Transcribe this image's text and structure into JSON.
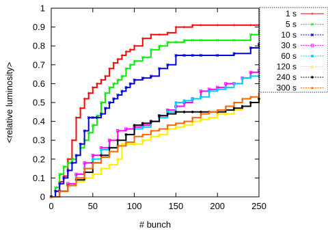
{
  "chart_data": {
    "type": "line",
    "xlabel": "# bunch",
    "ylabel": "<relative luminosity>",
    "xlim": [
      0,
      250
    ],
    "ylim": [
      0,
      1
    ],
    "xticks": [
      0,
      50,
      100,
      150,
      200,
      250
    ],
    "yticks": [
      0,
      0.1,
      0.2,
      0.3,
      0.4,
      0.5,
      0.6,
      0.7,
      0.8,
      0.9,
      1
    ],
    "xtick_labels": [
      "0",
      "50",
      "100",
      "150",
      "200",
      "250"
    ],
    "ytick_labels": [
      "0",
      "0.1",
      "0.2",
      "0.3",
      "0.4",
      "0.5",
      "0.6",
      "0.7",
      "0.8",
      "0.9",
      "1"
    ],
    "grid": false,
    "legend_position": "outside-right-top",
    "series": [
      {
        "name": "1 s",
        "color": "#ff0000",
        "marker": "plus",
        "x": [
          0,
          5,
          10,
          15,
          20,
          25,
          30,
          35,
          40,
          45,
          50,
          55,
          60,
          65,
          70,
          75,
          80,
          85,
          90,
          95,
          100,
          110,
          120,
          130,
          140,
          150,
          160,
          170,
          180,
          200,
          220,
          240,
          250
        ],
        "y": [
          0.0,
          0.03,
          0.08,
          0.11,
          0.2,
          0.3,
          0.42,
          0.47,
          0.52,
          0.55,
          0.58,
          0.6,
          0.62,
          0.64,
          0.68,
          0.71,
          0.73,
          0.75,
          0.77,
          0.78,
          0.8,
          0.84,
          0.86,
          0.86,
          0.87,
          0.9,
          0.9,
          0.91,
          0.91,
          0.91,
          0.91,
          0.91,
          0.91
        ]
      },
      {
        "name": "5 s",
        "color": "#00ee00",
        "marker": "cross",
        "x": [
          0,
          5,
          10,
          15,
          20,
          25,
          30,
          35,
          40,
          45,
          50,
          55,
          60,
          65,
          70,
          75,
          80,
          85,
          90,
          95,
          100,
          110,
          120,
          130,
          140,
          150,
          160,
          170,
          180,
          200,
          220,
          240,
          250
        ],
        "y": [
          0.0,
          0.05,
          0.12,
          0.16,
          0.18,
          0.2,
          0.22,
          0.26,
          0.3,
          0.34,
          0.38,
          0.43,
          0.5,
          0.55,
          0.58,
          0.6,
          0.62,
          0.64,
          0.68,
          0.7,
          0.72,
          0.74,
          0.78,
          0.8,
          0.82,
          0.82,
          0.83,
          0.83,
          0.83,
          0.83,
          0.83,
          0.86,
          0.88
        ]
      },
      {
        "name": "10 s",
        "color": "#0000dd",
        "marker": "asterisk",
        "x": [
          0,
          5,
          10,
          15,
          20,
          25,
          30,
          35,
          40,
          45,
          50,
          55,
          60,
          65,
          70,
          75,
          80,
          85,
          90,
          95,
          100,
          110,
          120,
          130,
          140,
          150,
          160,
          170,
          180,
          200,
          220,
          240,
          250
        ],
        "y": [
          0.0,
          0.03,
          0.07,
          0.1,
          0.14,
          0.18,
          0.22,
          0.28,
          0.35,
          0.42,
          0.42,
          0.42,
          0.44,
          0.47,
          0.5,
          0.52,
          0.54,
          0.56,
          0.58,
          0.6,
          0.62,
          0.63,
          0.64,
          0.68,
          0.7,
          0.75,
          0.75,
          0.75,
          0.75,
          0.75,
          0.76,
          0.79,
          0.81
        ]
      },
      {
        "name": "30 s",
        "color": "#ff00ff",
        "marker": "square-open",
        "x": [
          0,
          10,
          20,
          30,
          40,
          50,
          60,
          70,
          80,
          90,
          100,
          110,
          120,
          130,
          140,
          150,
          160,
          170,
          180,
          190,
          200,
          210,
          220,
          230,
          240,
          250
        ],
        "y": [
          0.0,
          0.03,
          0.07,
          0.12,
          0.18,
          0.22,
          0.26,
          0.3,
          0.35,
          0.36,
          0.37,
          0.38,
          0.4,
          0.43,
          0.46,
          0.48,
          0.5,
          0.52,
          0.56,
          0.57,
          0.58,
          0.6,
          0.6,
          0.63,
          0.66,
          0.67
        ]
      },
      {
        "name": "60 s",
        "color": "#00ccff",
        "marker": "square-filled",
        "x": [
          0,
          10,
          20,
          30,
          40,
          50,
          60,
          70,
          80,
          90,
          100,
          110,
          120,
          130,
          140,
          150,
          160,
          170,
          180,
          190,
          200,
          210,
          220,
          230,
          240,
          250
        ],
        "y": [
          0.0,
          0.03,
          0.06,
          0.1,
          0.15,
          0.2,
          0.25,
          0.26,
          0.27,
          0.33,
          0.36,
          0.37,
          0.4,
          0.42,
          0.45,
          0.5,
          0.51,
          0.52,
          0.53,
          0.56,
          0.57,
          0.58,
          0.6,
          0.63,
          0.64,
          0.64
        ]
      },
      {
        "name": "120 s",
        "color": "#ffee00",
        "marker": "triangle-open",
        "x": [
          0,
          10,
          20,
          30,
          40,
          50,
          60,
          70,
          80,
          85,
          90,
          100,
          110,
          120,
          130,
          140,
          150,
          160,
          170,
          180,
          190,
          200,
          210,
          220,
          230,
          240,
          250
        ],
        "y": [
          0.0,
          0.03,
          0.06,
          0.08,
          0.1,
          0.12,
          0.15,
          0.17,
          0.2,
          0.28,
          0.28,
          0.28,
          0.3,
          0.32,
          0.33,
          0.36,
          0.37,
          0.38,
          0.4,
          0.41,
          0.42,
          0.44,
          0.44,
          0.46,
          0.48,
          0.5,
          0.52
        ]
      },
      {
        "name": "240 s",
        "color": "#000000",
        "marker": "circle-filled",
        "x": [
          0,
          10,
          20,
          30,
          40,
          50,
          60,
          70,
          80,
          90,
          100,
          110,
          120,
          130,
          140,
          150,
          160,
          170,
          180,
          190,
          200,
          210,
          220,
          230,
          240,
          250
        ],
        "y": [
          0.0,
          0.03,
          0.06,
          0.09,
          0.13,
          0.18,
          0.22,
          0.26,
          0.3,
          0.33,
          0.38,
          0.39,
          0.4,
          0.43,
          0.44,
          0.45,
          0.45,
          0.45,
          0.45,
          0.45,
          0.45,
          0.46,
          0.47,
          0.48,
          0.5,
          0.52
        ]
      },
      {
        "name": "300 s",
        "color": "#ff6600",
        "marker": "triangle-filled",
        "x": [
          0,
          10,
          20,
          30,
          40,
          50,
          60,
          70,
          80,
          90,
          100,
          110,
          120,
          130,
          140,
          150,
          160,
          170,
          180,
          190,
          200,
          210,
          220,
          230,
          240,
          250
        ],
        "y": [
          0.0,
          0.03,
          0.06,
          0.1,
          0.15,
          0.18,
          0.21,
          0.24,
          0.27,
          0.29,
          0.32,
          0.33,
          0.35,
          0.36,
          0.38,
          0.39,
          0.4,
          0.42,
          0.44,
          0.45,
          0.46,
          0.48,
          0.5,
          0.52,
          0.53,
          0.55
        ]
      }
    ]
  }
}
